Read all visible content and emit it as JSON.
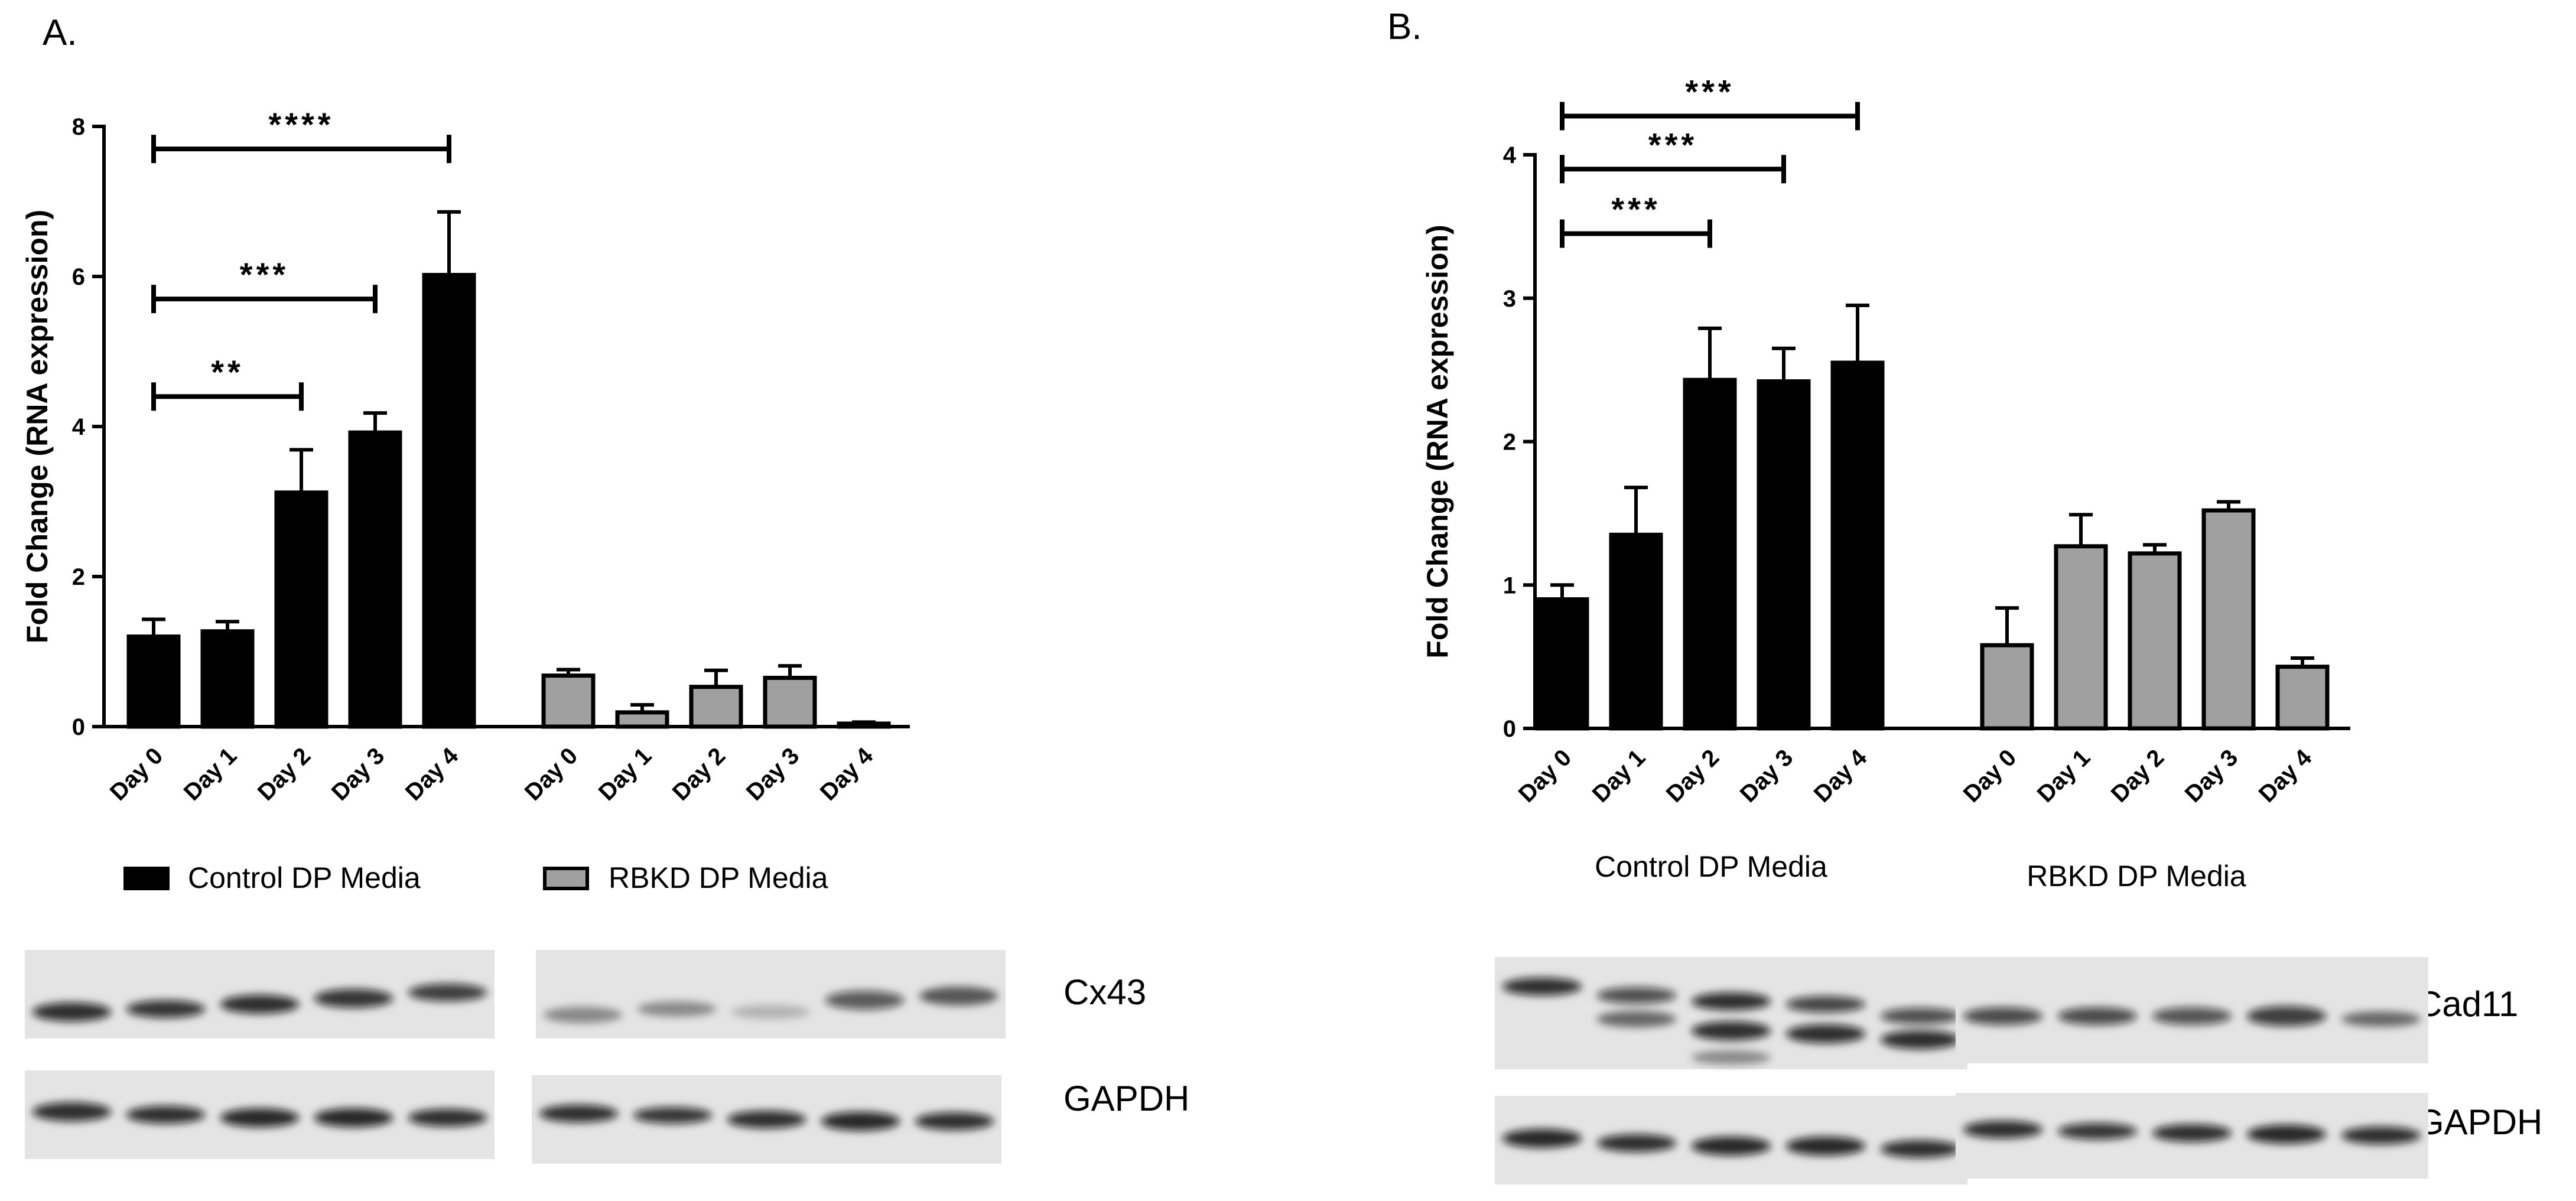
{
  "panels": [
    {
      "label": "A.",
      "legend": [
        {
          "text": "Control DP Media",
          "color": "#000000"
        },
        {
          "text": "RBKD DP Media",
          "color": "#a0a0a0"
        }
      ],
      "blot_labels": [
        "Cx43",
        "GAPDH"
      ]
    },
    {
      "label": "B.",
      "group_labels": [
        "Control DP Media",
        "RBKD DP Media"
      ],
      "blot_labels": [
        "Cad11",
        "GAPDH"
      ]
    }
  ],
  "chart_data": [
    {
      "type": "bar",
      "ylabel": "Fold Change (RNA expression)",
      "ylim": [
        0,
        8
      ],
      "yticks": [
        0,
        2,
        4,
        6,
        8
      ],
      "grid": false,
      "legend_placement": "bottom",
      "categories": [
        "Day 0",
        "Day 1",
        "Day 2",
        "Day 3",
        "Day 4"
      ],
      "series": [
        {
          "name": "Control DP Media",
          "color": "#000000",
          "values": [
            1.2,
            1.27,
            3.12,
            3.92,
            6.02
          ],
          "errors": [
            0.23,
            0.13,
            0.57,
            0.26,
            0.84
          ]
        },
        {
          "name": "RBKD DP Media",
          "color": "#a0a0a0",
          "values": [
            0.68,
            0.19,
            0.53,
            0.65,
            0.04
          ],
          "errors": [
            0.08,
            0.1,
            0.22,
            0.16,
            0.02
          ]
        }
      ],
      "significance": [
        {
          "from": "Day 0",
          "to": "Day 2",
          "y": 4.4,
          "label": "**"
        },
        {
          "from": "Day 0",
          "to": "Day 3",
          "y": 5.7,
          "label": "***"
        },
        {
          "from": "Day 0",
          "to": "Day 4",
          "y": 7.7,
          "label": "****"
        }
      ]
    },
    {
      "type": "bar",
      "ylabel": "Fold Change (RNA expression)",
      "ylim": [
        0,
        4
      ],
      "yticks": [
        0,
        1,
        2,
        3,
        4
      ],
      "grid": false,
      "categories": [
        "Day 0",
        "Day 1",
        "Day 2",
        "Day 3",
        "Day 4"
      ],
      "series": [
        {
          "name": "Control DP Media",
          "color": "#000000",
          "values": [
            0.9,
            1.35,
            2.43,
            2.42,
            2.55
          ],
          "errors": [
            0.1,
            0.33,
            0.36,
            0.23,
            0.4
          ]
        },
        {
          "name": "RBKD DP Media",
          "color": "#a0a0a0",
          "values": [
            0.58,
            1.27,
            1.22,
            1.52,
            0.43
          ],
          "errors": [
            0.26,
            0.22,
            0.06,
            0.06,
            0.06
          ]
        }
      ],
      "significance": [
        {
          "from": "Day 0",
          "to": "Day 2",
          "y": 3.45,
          "label": "***"
        },
        {
          "from": "Day 0",
          "to": "Day 3",
          "y": 3.9,
          "label": "***"
        },
        {
          "from": "Day 0",
          "to": "Day 4",
          "y": 4.27,
          "label": "***"
        }
      ]
    }
  ]
}
